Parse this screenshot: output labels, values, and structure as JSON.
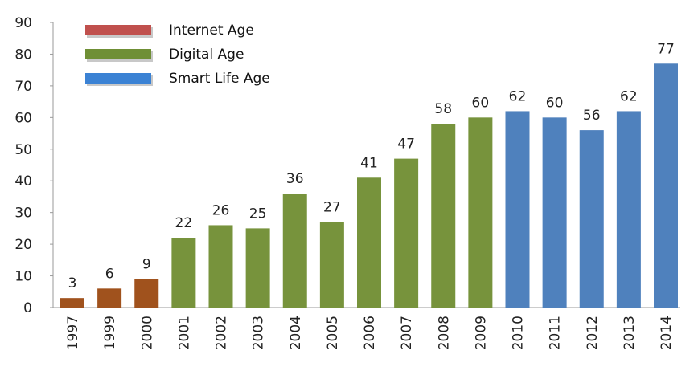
{
  "chart_data": {
    "type": "bar",
    "title": "",
    "xlabel": "",
    "ylabel": "",
    "ylim": [
      0,
      90
    ],
    "yticks": [
      0,
      10,
      20,
      30,
      40,
      50,
      60,
      70,
      80,
      90
    ],
    "grid": false,
    "legend_position": "top-left",
    "categories": [
      "1997",
      "1999",
      "2000",
      "2001",
      "2002",
      "2003",
      "2004",
      "2005",
      "2006",
      "2007",
      "2008",
      "2009",
      "2010",
      "2011",
      "2012",
      "2013",
      "2014"
    ],
    "values": [
      3,
      6,
      9,
      22,
      26,
      25,
      36,
      27,
      41,
      47,
      58,
      60,
      62,
      60,
      56,
      62,
      77
    ],
    "groups": [
      "internet",
      "internet",
      "internet",
      "digital",
      "digital",
      "digital",
      "digital",
      "digital",
      "digital",
      "digital",
      "digital",
      "digital",
      "smart",
      "smart",
      "smart",
      "smart",
      "smart"
    ],
    "series": [
      {
        "id": "internet",
        "name": "Internet Age",
        "color": "#a0521d",
        "legend_color": "#c0504d"
      },
      {
        "id": "digital",
        "name": "Digital Age",
        "color": "#77933c",
        "legend_color": "#6f8f35"
      },
      {
        "id": "smart",
        "name": "Smart Life Age",
        "color": "#4f81bd",
        "legend_color": "#3b82d4"
      }
    ]
  }
}
